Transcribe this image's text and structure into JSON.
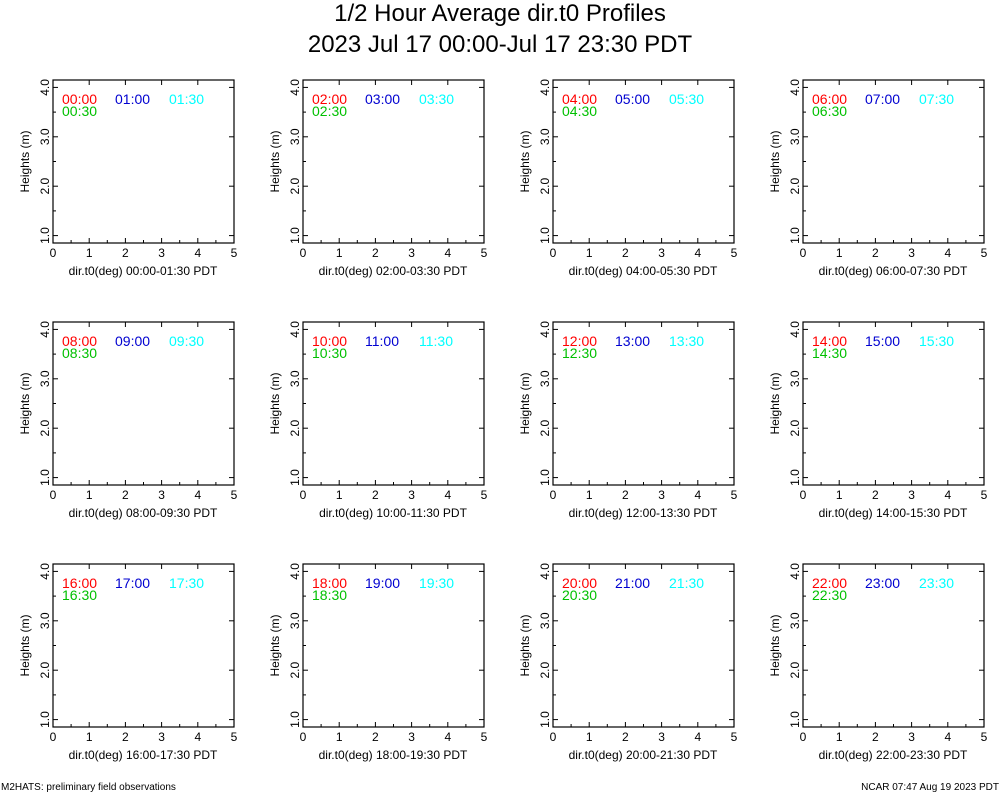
{
  "header": {
    "title": "1/2 Hour Average dir.t0 Profiles",
    "subtitle": "2023 Jul 17 00:00-Jul 17 23:30 PDT"
  },
  "footer": {
    "left": "M2HATS: preliminary field observations",
    "right": "NCAR 07:47 Aug 19 2023 PDT"
  },
  "colors": {
    "first": "#ff0000",
    "second": "#00c000",
    "third": "#0000d0",
    "fourth": "#00ffff"
  },
  "chart_data": [
    {
      "type": "line",
      "xlabel": "dir.t0(deg) 00:00-01:30 PDT",
      "ylabel": "Heights (m)",
      "xlim": [
        0,
        5
      ],
      "ylim": [
        0.85,
        4.15
      ],
      "xticks": [
        "0",
        "1",
        "2",
        "3",
        "4",
        "5"
      ],
      "yticks": [
        "1.0",
        "2.0",
        "3.0",
        "4.0"
      ],
      "legend": [
        "00:00",
        "00:30",
        "01:00",
        "01:30"
      ],
      "series": []
    },
    {
      "type": "line",
      "xlabel": "dir.t0(deg) 02:00-03:30 PDT",
      "ylabel": "Heights (m)",
      "xlim": [
        0,
        5
      ],
      "ylim": [
        0.85,
        4.15
      ],
      "xticks": [
        "0",
        "1",
        "2",
        "3",
        "4",
        "5"
      ],
      "yticks": [
        "1.0",
        "2.0",
        "3.0",
        "4.0"
      ],
      "legend": [
        "02:00",
        "02:30",
        "03:00",
        "03:30"
      ],
      "series": []
    },
    {
      "type": "line",
      "xlabel": "dir.t0(deg) 04:00-05:30 PDT",
      "ylabel": "Heights (m)",
      "xlim": [
        0,
        5
      ],
      "ylim": [
        0.85,
        4.15
      ],
      "xticks": [
        "0",
        "1",
        "2",
        "3",
        "4",
        "5"
      ],
      "yticks": [
        "1.0",
        "2.0",
        "3.0",
        "4.0"
      ],
      "legend": [
        "04:00",
        "04:30",
        "05:00",
        "05:30"
      ],
      "series": []
    },
    {
      "type": "line",
      "xlabel": "dir.t0(deg) 06:00-07:30 PDT",
      "ylabel": "Heights (m)",
      "xlim": [
        0,
        5
      ],
      "ylim": [
        0.85,
        4.15
      ],
      "xticks": [
        "0",
        "1",
        "2",
        "3",
        "4",
        "5"
      ],
      "yticks": [
        "1.0",
        "2.0",
        "3.0",
        "4.0"
      ],
      "legend": [
        "06:00",
        "06:30",
        "07:00",
        "07:30"
      ],
      "series": []
    },
    {
      "type": "line",
      "xlabel": "dir.t0(deg) 08:00-09:30 PDT",
      "ylabel": "Heights (m)",
      "xlim": [
        0,
        5
      ],
      "ylim": [
        0.85,
        4.15
      ],
      "xticks": [
        "0",
        "1",
        "2",
        "3",
        "4",
        "5"
      ],
      "yticks": [
        "1.0",
        "2.0",
        "3.0",
        "4.0"
      ],
      "legend": [
        "08:00",
        "08:30",
        "09:00",
        "09:30"
      ],
      "series": []
    },
    {
      "type": "line",
      "xlabel": "dir.t0(deg) 10:00-11:30 PDT",
      "ylabel": "Heights (m)",
      "xlim": [
        0,
        5
      ],
      "ylim": [
        0.85,
        4.15
      ],
      "xticks": [
        "0",
        "1",
        "2",
        "3",
        "4",
        "5"
      ],
      "yticks": [
        "1.0",
        "2.0",
        "3.0",
        "4.0"
      ],
      "legend": [
        "10:00",
        "10:30",
        "11:00",
        "11:30"
      ],
      "series": []
    },
    {
      "type": "line",
      "xlabel": "dir.t0(deg) 12:00-13:30 PDT",
      "ylabel": "Heights (m)",
      "xlim": [
        0,
        5
      ],
      "ylim": [
        0.85,
        4.15
      ],
      "xticks": [
        "0",
        "1",
        "2",
        "3",
        "4",
        "5"
      ],
      "yticks": [
        "1.0",
        "2.0",
        "3.0",
        "4.0"
      ],
      "legend": [
        "12:00",
        "12:30",
        "13:00",
        "13:30"
      ],
      "series": []
    },
    {
      "type": "line",
      "xlabel": "dir.t0(deg) 14:00-15:30 PDT",
      "ylabel": "Heights (m)",
      "xlim": [
        0,
        5
      ],
      "ylim": [
        0.85,
        4.15
      ],
      "xticks": [
        "0",
        "1",
        "2",
        "3",
        "4",
        "5"
      ],
      "yticks": [
        "1.0",
        "2.0",
        "3.0",
        "4.0"
      ],
      "legend": [
        "14:00",
        "14:30",
        "15:00",
        "15:30"
      ],
      "series": []
    },
    {
      "type": "line",
      "xlabel": "dir.t0(deg) 16:00-17:30 PDT",
      "ylabel": "Heights (m)",
      "xlim": [
        0,
        5
      ],
      "ylim": [
        0.85,
        4.15
      ],
      "xticks": [
        "0",
        "1",
        "2",
        "3",
        "4",
        "5"
      ],
      "yticks": [
        "1.0",
        "2.0",
        "3.0",
        "4.0"
      ],
      "legend": [
        "16:00",
        "16:30",
        "17:00",
        "17:30"
      ],
      "series": []
    },
    {
      "type": "line",
      "xlabel": "dir.t0(deg) 18:00-19:30 PDT",
      "ylabel": "Heights (m)",
      "xlim": [
        0,
        5
      ],
      "ylim": [
        0.85,
        4.15
      ],
      "xticks": [
        "0",
        "1",
        "2",
        "3",
        "4",
        "5"
      ],
      "yticks": [
        "1.0",
        "2.0",
        "3.0",
        "4.0"
      ],
      "legend": [
        "18:00",
        "18:30",
        "19:00",
        "19:30"
      ],
      "series": []
    },
    {
      "type": "line",
      "xlabel": "dir.t0(deg) 20:00-21:30 PDT",
      "ylabel": "Heights (m)",
      "xlim": [
        0,
        5
      ],
      "ylim": [
        0.85,
        4.15
      ],
      "xticks": [
        "0",
        "1",
        "2",
        "3",
        "4",
        "5"
      ],
      "yticks": [
        "1.0",
        "2.0",
        "3.0",
        "4.0"
      ],
      "legend": [
        "20:00",
        "20:30",
        "21:00",
        "21:30"
      ],
      "series": []
    },
    {
      "type": "line",
      "xlabel": "dir.t0(deg) 22:00-23:30 PDT",
      "ylabel": "Heights (m)",
      "xlim": [
        0,
        5
      ],
      "ylim": [
        0.85,
        4.15
      ],
      "xticks": [
        "0",
        "1",
        "2",
        "3",
        "4",
        "5"
      ],
      "yticks": [
        "1.0",
        "2.0",
        "3.0",
        "4.0"
      ],
      "legend": [
        "22:00",
        "22:30",
        "23:00",
        "23:30"
      ],
      "series": []
    }
  ]
}
